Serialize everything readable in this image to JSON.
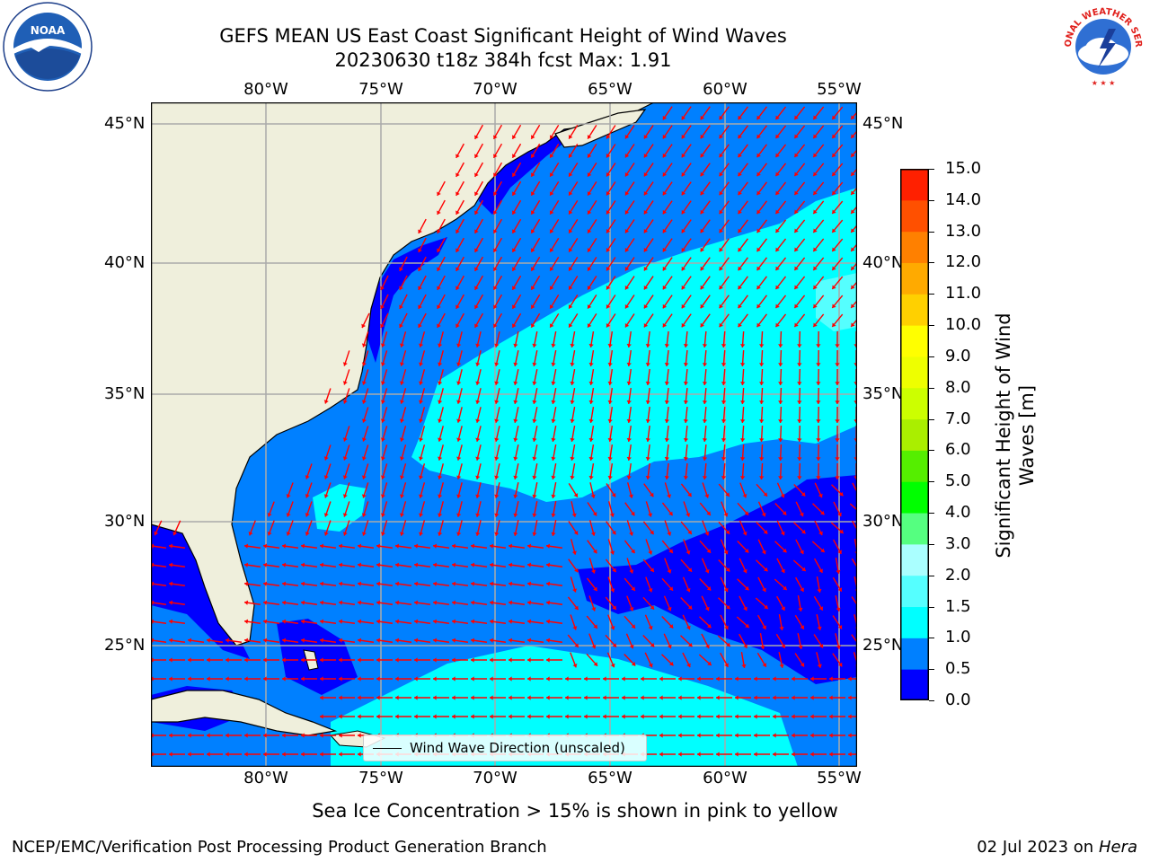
{
  "header": {
    "title_line1": "GEFS MEAN US East Coast Significant Height of Wind Waves",
    "title_line2": "20230630 t18z 384h fcst   Max: 1.91"
  },
  "logos": {
    "left": {
      "icon": "noaa-logo",
      "text": "NOAA"
    },
    "right": {
      "icon": "national-weather-service-logo",
      "text": "NATIONAL WEATHER SERVICE"
    }
  },
  "map": {
    "lon_labels": [
      "80°W",
      "75°W",
      "70°W",
      "65°W",
      "60°W",
      "55°W"
    ],
    "lat_labels": [
      "45°N",
      "40°N",
      "35°N",
      "30°N",
      "25°N"
    ],
    "legend_label": "Wind Wave Direction (unscaled)"
  },
  "colorbar": {
    "title": "Significant Height of Wind Waves [m]",
    "ticks": [
      "0.0",
      "0.5",
      "1.0",
      "1.5",
      "2.0",
      "3.0",
      "4.0",
      "5.0",
      "6.0",
      "7.0",
      "8.0",
      "9.0",
      "10.0",
      "11.0",
      "12.0",
      "13.0",
      "14.0",
      "15.0"
    ],
    "colors": [
      "#0000ff",
      "#0080ff",
      "#00ffff",
      "#55ffff",
      "#aaffff",
      "#55ff80",
      "#00ff00",
      "#55ee00",
      "#aaee00",
      "#ccff00",
      "#eeff00",
      "#ffff00",
      "#ffd000",
      "#ffaa00",
      "#ff8000",
      "#ff5000",
      "#ff2000"
    ]
  },
  "notes": {
    "ice": "Sea Ice Concentration > 15% is shown in pink to yellow",
    "org": "NCEP/EMC/Verification Post Processing Product Generation Branch",
    "date": "02 Jul 2023 on",
    "host": "Hera"
  }
}
